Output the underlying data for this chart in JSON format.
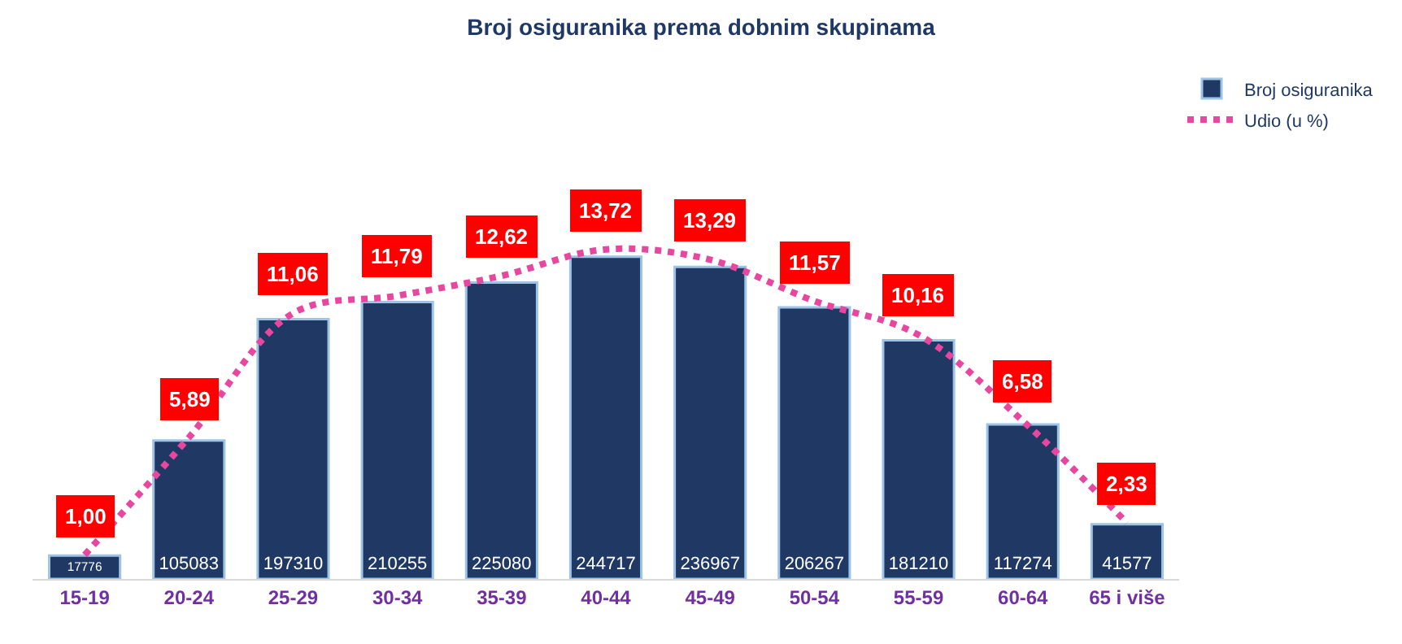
{
  "chart_data": {
    "type": "bar",
    "title": "Broj osiguranika prema dobnim skupinama",
    "categories": [
      "15-19",
      "20-24",
      "25-29",
      "30-34",
      "35-39",
      "40-44",
      "45-49",
      "50-54",
      "55-59",
      "60-64",
      "65 i više"
    ],
    "series": [
      {
        "name": "Broj osiguranika",
        "color": "#1f3864",
        "values": [
          17776,
          105083,
          197310,
          210255,
          225080,
          244717,
          236967,
          206267,
          181210,
          117274,
          41577
        ]
      },
      {
        "name": "Udio (u %)",
        "type": "line",
        "axis": "y2",
        "color": "#e8479f",
        "line_style": "dotted",
        "values": [
          1.0,
          5.89,
          11.06,
          11.79,
          12.62,
          13.72,
          13.29,
          11.57,
          10.16,
          6.58,
          2.33
        ],
        "value_labels": [
          "1,00",
          "5,89",
          "11,06",
          "11,79",
          "12,62",
          "13,72",
          "13,29",
          "11,57",
          "10,16",
          "6,58",
          "2,33"
        ]
      }
    ],
    "data_labels": true,
    "legend": "top right",
    "grid": false
  }
}
